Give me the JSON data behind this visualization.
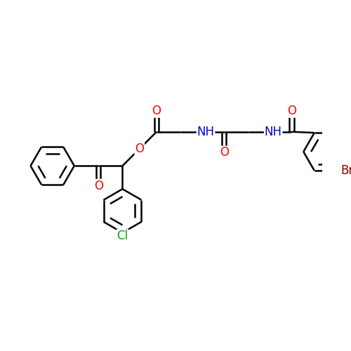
{
  "bg_color": "#ffffff",
  "bond_color": "#000000",
  "bond_width": 1.8,
  "atom_colors": {
    "O": "#ff0000",
    "N": "#0000cc",
    "Cl": "#00aa00",
    "Br": "#8b0000",
    "C": "#000000"
  },
  "font_size_atoms": 12,
  "ring_r": 0.68,
  "dbo": 0.07
}
